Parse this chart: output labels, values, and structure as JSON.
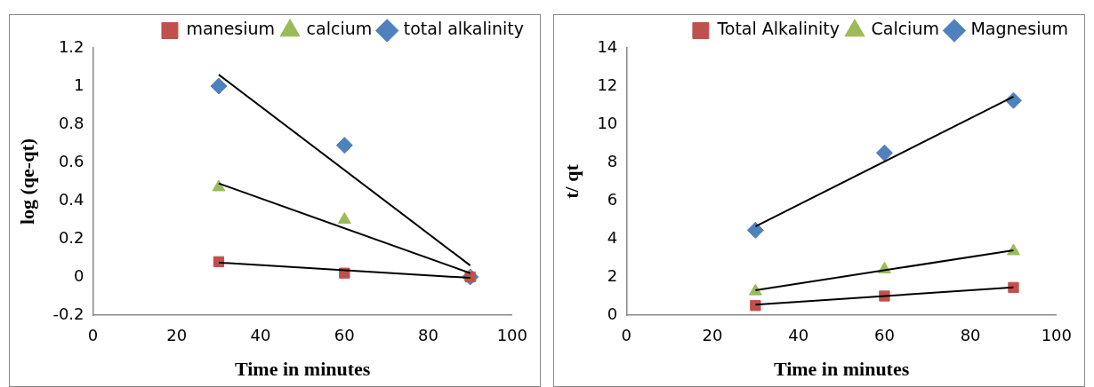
{
  "chart_data": [
    {
      "type": "scatter",
      "xlabel": "Time in minutes",
      "ylabel": "log (qe-qt)",
      "xlim": [
        0,
        100
      ],
      "xticks": [
        0,
        20,
        40,
        60,
        80,
        100
      ],
      "ylim": [
        -0.2,
        1.2
      ],
      "yticks": [
        -0.2,
        0,
        0.2,
        0.4,
        0.6,
        0.8,
        1,
        1.2
      ],
      "grid": false,
      "legend": "top right",
      "series": [
        {
          "name": "manesium",
          "color": "#c0504d",
          "marker": "square",
          "x": [
            30,
            60,
            90
          ],
          "values": [
            0.08,
            0.02,
            0.0
          ]
        },
        {
          "name": "calcium",
          "color": "#9bbb59",
          "marker": "triangle",
          "x": [
            30,
            60,
            90
          ],
          "values": [
            0.47,
            0.3,
            0.0
          ]
        },
        {
          "name": "total alkalinity",
          "color": "#4f81bd",
          "marker": "diamond",
          "x": [
            30,
            60,
            90
          ],
          "values": [
            1.0,
            0.69,
            0.0
          ]
        },
        {
          "type": "line",
          "color": "#000000",
          "marker": "none",
          "x": [
            30,
            90
          ],
          "values": [
            0.075,
            -0.005
          ]
        },
        {
          "type": "line",
          "color": "#000000",
          "marker": "none",
          "x": [
            30,
            90
          ],
          "values": [
            0.49,
            0.02
          ]
        },
        {
          "type": "line",
          "color": "#000000",
          "marker": "none",
          "x": [
            30,
            90
          ],
          "values": [
            1.06,
            0.06
          ]
        }
      ]
    },
    {
      "type": "scatter",
      "xlabel": "Time in minutes",
      "ylabel": "t/ qt",
      "xlim": [
        0,
        100
      ],
      "xticks": [
        0,
        20,
        40,
        60,
        80,
        100
      ],
      "ylim": [
        0,
        14
      ],
      "yticks": [
        0,
        2,
        4,
        6,
        8,
        10,
        12,
        14
      ],
      "grid": false,
      "legend": "top right",
      "series": [
        {
          "name": "Total Alkalinity",
          "color": "#c0504d",
          "marker": "square",
          "x": [
            30,
            60,
            90
          ],
          "values": [
            0.5,
            1.0,
            1.45
          ]
        },
        {
          "name": "Calcium",
          "color": "#9bbb59",
          "marker": "triangle",
          "x": [
            30,
            60,
            90
          ],
          "values": [
            1.25,
            2.4,
            3.35
          ]
        },
        {
          "name": "Magnesium",
          "color": "#4f81bd",
          "marker": "diamond",
          "x": [
            30,
            60,
            90
          ],
          "values": [
            4.45,
            8.5,
            11.25
          ]
        },
        {
          "type": "line",
          "color": "#000000",
          "marker": "none",
          "x": [
            30,
            90
          ],
          "values": [
            0.55,
            1.45
          ]
        },
        {
          "type": "line",
          "color": "#000000",
          "marker": "none",
          "x": [
            30,
            90
          ],
          "values": [
            1.3,
            3.4
          ]
        },
        {
          "type": "line",
          "color": "#000000",
          "marker": "none",
          "x": [
            30,
            90
          ],
          "values": [
            4.65,
            11.45
          ]
        }
      ]
    }
  ]
}
